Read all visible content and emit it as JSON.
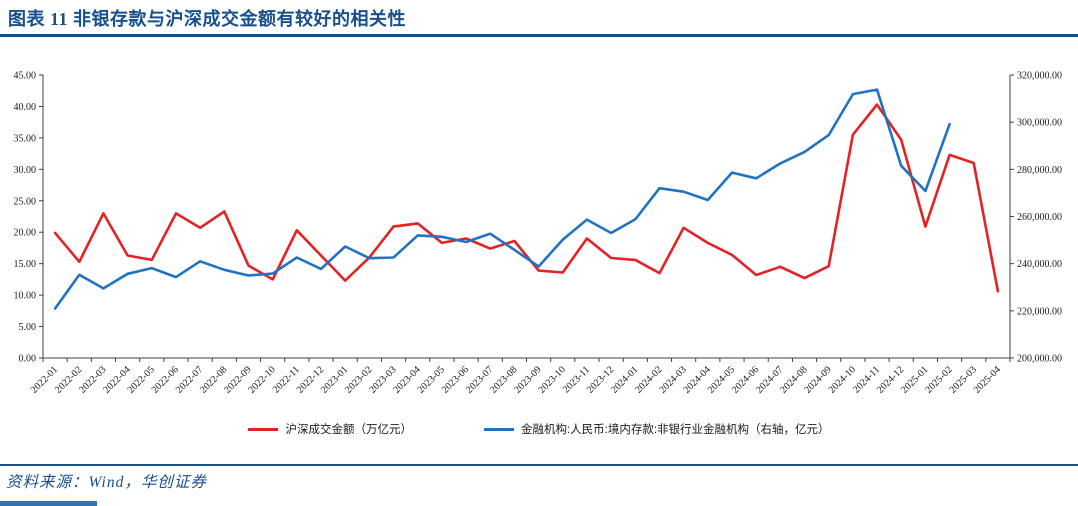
{
  "header": {
    "title": "图表 11  非银存款与沪深成交金额有较好的相关性"
  },
  "chart_data": {
    "type": "line",
    "title": "",
    "categories": [
      "2022-01",
      "2022-02",
      "2022-03",
      "2022-04",
      "2022-05",
      "2022-06",
      "2022-07",
      "2022-08",
      "2022-09",
      "2022-10",
      "2022-11",
      "2022-12",
      "2023-01",
      "2023-02",
      "2023-03",
      "2023-04",
      "2023-05",
      "2023-06",
      "2023-07",
      "2023-08",
      "2023-09",
      "2023-10",
      "2023-11",
      "2023-12",
      "2024-01",
      "2024-02",
      "2024-03",
      "2024-04",
      "2024-05",
      "2024-06",
      "2024-07",
      "2024-08",
      "2024-09",
      "2024-10",
      "2024-11",
      "2024-12",
      "2025-01",
      "2025-02",
      "2025-03",
      "2025-04"
    ],
    "series": [
      {
        "name": "沪深成交金额（万亿元）",
        "axis": "left",
        "color": "#e32225",
        "values": [
          19.9,
          15.3,
          23.0,
          16.3,
          15.6,
          23.0,
          20.7,
          23.3,
          14.7,
          12.5,
          20.3,
          16.3,
          12.3,
          16.0,
          20.9,
          21.4,
          18.3,
          19.0,
          17.4,
          18.6,
          13.9,
          13.6,
          19.0,
          15.9,
          15.6,
          13.5,
          20.7,
          18.3,
          16.4,
          13.2,
          14.5,
          12.7,
          14.6,
          35.5,
          40.3,
          34.7,
          20.9,
          32.3,
          31.0,
          10.6
        ]
      },
      {
        "name": "金融机构:人民币:境内存款:非银行业金融机构（右轴，亿元）",
        "axis": "right",
        "color": "#2173c2",
        "values": [
          221000,
          235300,
          229500,
          235700,
          238100,
          234300,
          241000,
          237400,
          235000,
          235800,
          242600,
          237800,
          247300,
          242300,
          242600,
          252000,
          251400,
          249200,
          252700,
          245900,
          238800,
          250200,
          258700,
          253000,
          258800,
          272000,
          270500,
          267000,
          278600,
          276200,
          282500,
          287400,
          294500,
          311900,
          313800,
          281500,
          270800,
          299200,
          null,
          null
        ]
      }
    ],
    "left_axis": {
      "min": 0,
      "max": 45,
      "step": 5,
      "ticks": [
        "0.00",
        "5.00",
        "10.00",
        "15.00",
        "20.00",
        "25.00",
        "30.00",
        "35.00",
        "40.00",
        "45.00"
      ]
    },
    "right_axis": {
      "min": 200000,
      "max": 320000,
      "step": 20000,
      "ticks": [
        "200,000.00",
        "220,000.00",
        "240,000.00",
        "260,000.00",
        "280,000.00",
        "300,000.00",
        "320,000.00"
      ]
    },
    "grid": false,
    "legend_position": "bottom"
  },
  "footer": {
    "source": "资料来源：Wind，华创证券"
  }
}
